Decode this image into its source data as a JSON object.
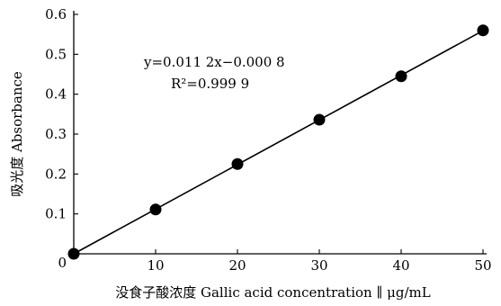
{
  "chart_data": {
    "type": "scatter",
    "x": [
      0,
      10,
      20,
      30,
      40,
      50
    ],
    "y": [
      0.0,
      0.111,
      0.225,
      0.336,
      0.445,
      0.56
    ],
    "fit": {
      "type": "linear",
      "slope": 0.0112,
      "intercept": -0.0008
    },
    "xlabel": "没食子酸浓度 Gallic acid concentration",
    "xunit": "μg/mL",
    "ylabel": "吸光度 Absorbance",
    "xlim": [
      0,
      50
    ],
    "ylim": [
      0,
      0.6
    ],
    "xticks": [
      0,
      10,
      20,
      30,
      40,
      50
    ],
    "yticks": [
      0,
      0.1,
      0.2,
      0.3,
      0.4,
      0.5,
      0.6
    ],
    "ytick_labels": [
      "0",
      "0.1",
      "0.2",
      "0.3",
      "0.4",
      "0.5",
      "0.6"
    ],
    "xtick_labels": [
      "0",
      "10",
      "20",
      "30",
      "40",
      "50"
    ],
    "grid": false,
    "annotations": {
      "equation": "y=0.011 2x−0.000 8",
      "r_squared": "R²=0.999 9"
    }
  }
}
